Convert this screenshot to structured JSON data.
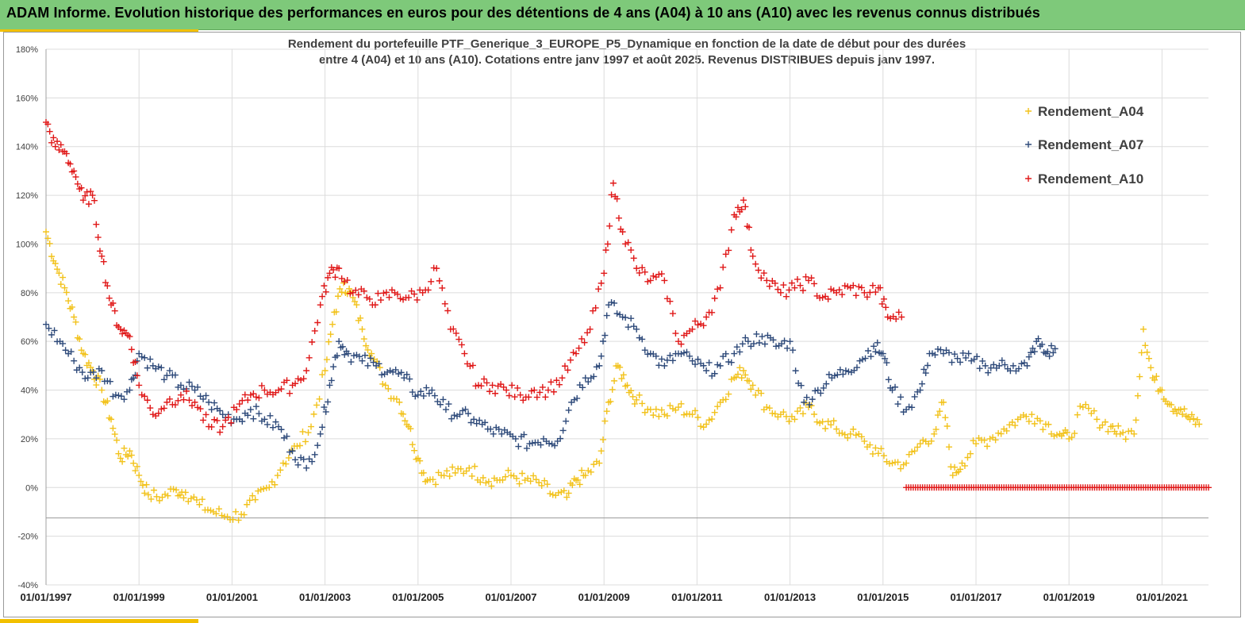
{
  "header": {
    "title": "ADAM Informe. Evolution historique des performances en euros pour des détentions de 4 ans (A04) à 10 ans (A10) avec les revenus connus distribués"
  },
  "colors": {
    "banner": "#7ec97a",
    "accent": "#f2c000",
    "A04": "#f2c21b",
    "A07": "#2e4a7a",
    "A10": "#e01818"
  },
  "chart_data": {
    "type": "scatter",
    "title": "Rendement du portefeuille PTF_Generique_3_EUROPE_P5_Dynamique  en fonction de la date de début pour des durées",
    "subtitle": "entre 4 (A04) et 10 ans (A10). Cotations  entre janv 1997 et août 2025. Revenus DISTRIBUES depuis janv 1997.",
    "xlabel": "",
    "ylabel": "",
    "x_range": [
      "1997-01-01",
      "2022-01-01"
    ],
    "ylim": [
      -40,
      180
    ],
    "y_ticks": [
      "180%",
      "160%",
      "140%",
      "120%",
      "100%",
      "80%",
      "60%",
      "40%",
      "20%",
      "0%",
      "-20%",
      "-40%"
    ],
    "x_ticks": [
      "01/01/1997",
      "01/01/1999",
      "01/01/2001",
      "01/01/2003",
      "01/01/2005",
      "01/01/2007",
      "01/01/2009",
      "01/01/2011",
      "01/01/2013",
      "01/01/2015",
      "01/01/2017",
      "01/01/2019",
      "01/01/2021"
    ],
    "grid": true,
    "marker": "+",
    "legend_position": "top-right",
    "series": [
      {
        "name": "Rendement_A04",
        "points": [
          [
            1997.0,
            105
          ],
          [
            1997.2,
            92
          ],
          [
            1997.4,
            82
          ],
          [
            1997.6,
            70
          ],
          [
            1997.8,
            55
          ],
          [
            1998.0,
            48
          ],
          [
            1998.2,
            40
          ],
          [
            1998.4,
            28
          ],
          [
            1998.6,
            12
          ],
          [
            1998.8,
            15
          ],
          [
            1999.0,
            5
          ],
          [
            1999.2,
            -3
          ],
          [
            1999.5,
            -4
          ],
          [
            1999.8,
            -1
          ],
          [
            2000.0,
            -2
          ],
          [
            2000.3,
            -7
          ],
          [
            2000.6,
            -10
          ],
          [
            2000.9,
            -12
          ],
          [
            2001.2,
            -11
          ],
          [
            2001.5,
            -5
          ],
          [
            2001.8,
            0
          ],
          [
            2002.1,
            10
          ],
          [
            2002.4,
            17
          ],
          [
            2002.7,
            25
          ],
          [
            2003.0,
            48
          ],
          [
            2003.2,
            72
          ],
          [
            2003.4,
            84
          ],
          [
            2003.6,
            78
          ],
          [
            2003.8,
            65
          ],
          [
            2004.0,
            55
          ],
          [
            2004.3,
            42
          ],
          [
            2004.6,
            35
          ],
          [
            2004.8,
            25
          ],
          [
            2005.0,
            12
          ],
          [
            2005.2,
            3
          ],
          [
            2005.5,
            5
          ],
          [
            2005.8,
            6
          ],
          [
            2006.1,
            8
          ],
          [
            2006.4,
            4
          ],
          [
            2006.7,
            3
          ],
          [
            2007.0,
            5
          ],
          [
            2007.3,
            3
          ],
          [
            2007.6,
            2
          ],
          [
            2007.9,
            -3
          ],
          [
            2008.2,
            -4
          ],
          [
            2008.4,
            3
          ],
          [
            2008.6,
            5
          ],
          [
            2008.9,
            10
          ],
          [
            2009.1,
            35
          ],
          [
            2009.3,
            50
          ],
          [
            2009.5,
            42
          ],
          [
            2009.7,
            36
          ],
          [
            2010.0,
            32
          ],
          [
            2010.3,
            30
          ],
          [
            2010.6,
            33
          ],
          [
            2010.9,
            30
          ],
          [
            2011.2,
            26
          ],
          [
            2011.5,
            35
          ],
          [
            2011.8,
            45
          ],
          [
            2012.0,
            48
          ],
          [
            2012.2,
            42
          ],
          [
            2012.5,
            33
          ],
          [
            2012.8,
            30
          ],
          [
            2013.1,
            28
          ],
          [
            2013.4,
            33
          ],
          [
            2013.7,
            27
          ],
          [
            2014.0,
            24
          ],
          [
            2014.3,
            22
          ],
          [
            2014.6,
            19
          ],
          [
            2014.9,
            14
          ],
          [
            2015.2,
            10
          ],
          [
            2015.5,
            10
          ],
          [
            2015.8,
            18
          ],
          [
            2016.1,
            22
          ],
          [
            2016.3,
            35
          ],
          [
            2016.5,
            5
          ],
          [
            2016.7,
            10
          ],
          [
            2017.0,
            18
          ],
          [
            2017.3,
            20
          ],
          [
            2017.6,
            24
          ],
          [
            2017.9,
            28
          ],
          [
            2018.2,
            30
          ],
          [
            2018.5,
            26
          ],
          [
            2018.8,
            22
          ],
          [
            2019.0,
            20
          ],
          [
            2019.3,
            33
          ],
          [
            2019.6,
            28
          ],
          [
            2019.9,
            25
          ],
          [
            2020.1,
            22
          ],
          [
            2020.4,
            22
          ],
          [
            2020.6,
            65
          ],
          [
            2020.8,
            45
          ],
          [
            2021.0,
            40
          ],
          [
            2021.2,
            34
          ],
          [
            2021.4,
            32
          ],
          [
            2021.6,
            28
          ],
          [
            2021.8,
            26
          ]
        ]
      },
      {
        "name": "Rendement_A07",
        "points": [
          [
            1997.0,
            67
          ],
          [
            1997.3,
            60
          ],
          [
            1997.6,
            52
          ],
          [
            1997.9,
            45
          ],
          [
            1998.2,
            48
          ],
          [
            1998.5,
            38
          ],
          [
            1998.8,
            40
          ],
          [
            1999.0,
            55
          ],
          [
            1999.3,
            50
          ],
          [
            1999.6,
            46
          ],
          [
            1999.9,
            42
          ],
          [
            2000.2,
            40
          ],
          [
            2000.5,
            35
          ],
          [
            2000.8,
            30
          ],
          [
            2001.1,
            28
          ],
          [
            2001.4,
            32
          ],
          [
            2001.7,
            28
          ],
          [
            2002.0,
            25
          ],
          [
            2002.3,
            15
          ],
          [
            2002.6,
            8
          ],
          [
            2002.9,
            22
          ],
          [
            2003.1,
            42
          ],
          [
            2003.3,
            60
          ],
          [
            2003.5,
            55
          ],
          [
            2003.8,
            52
          ],
          [
            2004.1,
            50
          ],
          [
            2004.4,
            48
          ],
          [
            2004.7,
            45
          ],
          [
            2005.0,
            38
          ],
          [
            2005.3,
            40
          ],
          [
            2005.6,
            32
          ],
          [
            2005.9,
            30
          ],
          [
            2006.2,
            28
          ],
          [
            2006.5,
            24
          ],
          [
            2006.8,
            22
          ],
          [
            2007.1,
            20
          ],
          [
            2007.4,
            18
          ],
          [
            2007.7,
            20
          ],
          [
            2008.0,
            19
          ],
          [
            2008.3,
            35
          ],
          [
            2008.6,
            45
          ],
          [
            2008.9,
            50
          ],
          [
            2009.1,
            75
          ],
          [
            2009.4,
            70
          ],
          [
            2009.7,
            65
          ],
          [
            2010.0,
            55
          ],
          [
            2010.3,
            50
          ],
          [
            2010.6,
            55
          ],
          [
            2010.9,
            52
          ],
          [
            2011.2,
            48
          ],
          [
            2011.5,
            50
          ],
          [
            2011.8,
            55
          ],
          [
            2012.1,
            60
          ],
          [
            2012.4,
            62
          ],
          [
            2012.7,
            58
          ],
          [
            2013.0,
            60
          ],
          [
            2013.3,
            35
          ],
          [
            2013.6,
            40
          ],
          [
            2013.9,
            45
          ],
          [
            2014.2,
            48
          ],
          [
            2014.5,
            52
          ],
          [
            2014.8,
            58
          ],
          [
            2015.0,
            55
          ],
          [
            2015.2,
            40
          ],
          [
            2015.5,
            32
          ],
          [
            2015.8,
            40
          ],
          [
            2016.0,
            55
          ],
          [
            2016.3,
            55
          ],
          [
            2016.6,
            53
          ],
          [
            2016.9,
            52
          ],
          [
            2017.2,
            50
          ],
          [
            2017.5,
            50
          ],
          [
            2017.8,
            50
          ],
          [
            2018.1,
            50
          ],
          [
            2018.3,
            60
          ],
          [
            2018.5,
            55
          ],
          [
            2018.7,
            57
          ]
        ]
      },
      {
        "name": "Rendement_A10",
        "points": [
          [
            1997.0,
            150
          ],
          [
            1997.2,
            140
          ],
          [
            1997.4,
            138
          ],
          [
            1997.6,
            130
          ],
          [
            1997.8,
            118
          ],
          [
            1998.0,
            120
          ],
          [
            1998.2,
            95
          ],
          [
            1998.4,
            75
          ],
          [
            1998.6,
            65
          ],
          [
            1998.8,
            62
          ],
          [
            1999.0,
            42
          ],
          [
            1999.3,
            30
          ],
          [
            1999.6,
            35
          ],
          [
            1999.9,
            38
          ],
          [
            2000.2,
            35
          ],
          [
            2000.5,
            25
          ],
          [
            2000.8,
            25
          ],
          [
            2001.1,
            32
          ],
          [
            2001.4,
            38
          ],
          [
            2001.7,
            40
          ],
          [
            2002.0,
            40
          ],
          [
            2002.3,
            42
          ],
          [
            2002.6,
            48
          ],
          [
            2002.9,
            75
          ],
          [
            2003.1,
            88
          ],
          [
            2003.3,
            90
          ],
          [
            2003.6,
            80
          ],
          [
            2003.9,
            78
          ],
          [
            2004.2,
            77
          ],
          [
            2004.5,
            80
          ],
          [
            2004.8,
            78
          ],
          [
            2005.1,
            80
          ],
          [
            2005.4,
            90
          ],
          [
            2005.7,
            65
          ],
          [
            2006.0,
            55
          ],
          [
            2006.3,
            42
          ],
          [
            2006.6,
            42
          ],
          [
            2006.9,
            40
          ],
          [
            2007.2,
            38
          ],
          [
            2007.5,
            40
          ],
          [
            2007.8,
            40
          ],
          [
            2008.1,
            45
          ],
          [
            2008.4,
            55
          ],
          [
            2008.7,
            65
          ],
          [
            2009.0,
            88
          ],
          [
            2009.2,
            125
          ],
          [
            2009.4,
            105
          ],
          [
            2009.7,
            90
          ],
          [
            2010.0,
            85
          ],
          [
            2010.3,
            85
          ],
          [
            2010.6,
            60
          ],
          [
            2010.9,
            65
          ],
          [
            2011.2,
            70
          ],
          [
            2011.5,
            82
          ],
          [
            2011.8,
            112
          ],
          [
            2012.0,
            118
          ],
          [
            2012.2,
            95
          ],
          [
            2012.5,
            85
          ],
          [
            2012.8,
            80
          ],
          [
            2013.1,
            82
          ],
          [
            2013.4,
            85
          ],
          [
            2013.7,
            78
          ],
          [
            2014.0,
            80
          ],
          [
            2014.3,
            82
          ],
          [
            2014.6,
            80
          ],
          [
            2014.9,
            82
          ],
          [
            2015.1,
            70
          ],
          [
            2015.4,
            70
          ]
        ],
        "zero_range": [
          2015.5,
          2022.0
        ]
      }
    ]
  }
}
